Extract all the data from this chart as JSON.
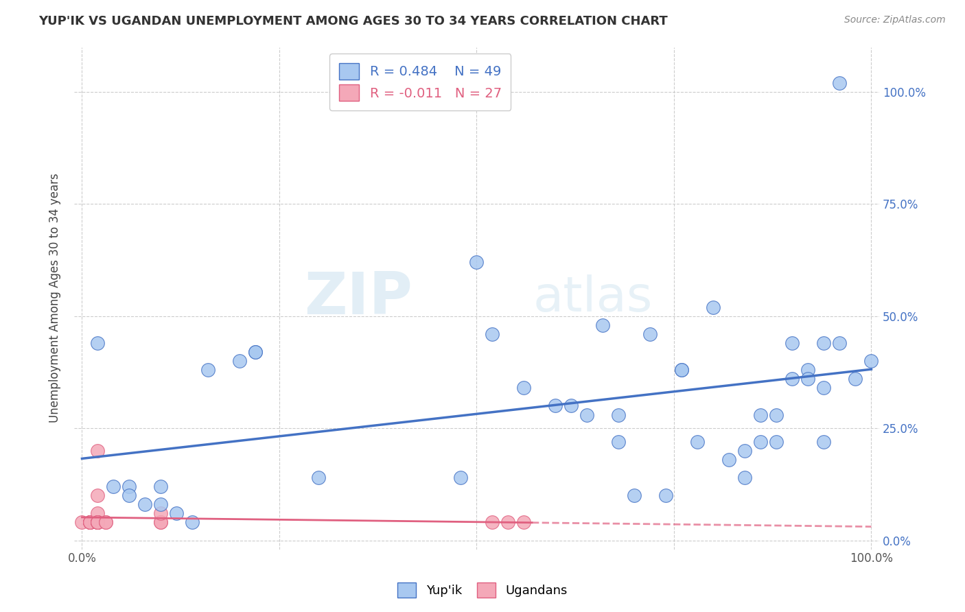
{
  "title": "YUP'IK VS UGANDAN UNEMPLOYMENT AMONG AGES 30 TO 34 YEARS CORRELATION CHART",
  "source": "Source: ZipAtlas.com",
  "ylabel": "Unemployment Among Ages 30 to 34 years",
  "legend_bottom": [
    "Yup'ik",
    "Ugandans"
  ],
  "yupik_R": 0.484,
  "yupik_N": 49,
  "ugandan_R": -0.011,
  "ugandan_N": 27,
  "yupik_color": "#a8c8f0",
  "yupik_line_color": "#4472c4",
  "ugandan_color": "#f4a8b8",
  "ugandan_line_color": "#e06080",
  "background_color": "#ffffff",
  "grid_color": "#cccccc",
  "watermark_zip": "ZIP",
  "watermark_atlas": "atlas",
  "yupik_x": [
    0.02,
    0.04,
    0.06,
    0.06,
    0.08,
    0.1,
    0.1,
    0.12,
    0.14,
    0.16,
    0.2,
    0.22,
    0.22,
    0.3,
    0.48,
    0.5,
    0.52,
    0.56,
    0.6,
    0.62,
    0.64,
    0.66,
    0.68,
    0.68,
    0.7,
    0.72,
    0.74,
    0.76,
    0.76,
    0.78,
    0.8,
    0.82,
    0.84,
    0.84,
    0.86,
    0.86,
    0.88,
    0.88,
    0.9,
    0.9,
    0.92,
    0.92,
    0.94,
    0.94,
    0.94,
    0.96,
    0.96,
    0.98,
    1.0
  ],
  "yupik_y": [
    0.44,
    0.12,
    0.12,
    0.1,
    0.08,
    0.12,
    0.08,
    0.06,
    0.04,
    0.38,
    0.4,
    0.42,
    0.42,
    0.14,
    0.14,
    0.62,
    0.46,
    0.34,
    0.3,
    0.3,
    0.28,
    0.48,
    0.28,
    0.22,
    0.1,
    0.46,
    0.1,
    0.38,
    0.38,
    0.22,
    0.52,
    0.18,
    0.2,
    0.14,
    0.28,
    0.22,
    0.28,
    0.22,
    0.44,
    0.36,
    0.38,
    0.36,
    0.44,
    0.34,
    0.22,
    1.02,
    0.44,
    0.36,
    0.4
  ],
  "ugandan_x": [
    0.0,
    0.01,
    0.01,
    0.01,
    0.01,
    0.01,
    0.01,
    0.01,
    0.02,
    0.02,
    0.02,
    0.02,
    0.02,
    0.02,
    0.02,
    0.02,
    0.02,
    0.02,
    0.02,
    0.03,
    0.03,
    0.1,
    0.1,
    0.1,
    0.52,
    0.54,
    0.56
  ],
  "ugandan_y": [
    0.04,
    0.04,
    0.04,
    0.04,
    0.04,
    0.04,
    0.04,
    0.04,
    0.04,
    0.04,
    0.04,
    0.04,
    0.04,
    0.2,
    0.1,
    0.06,
    0.04,
    0.04,
    0.04,
    0.04,
    0.04,
    0.04,
    0.04,
    0.06,
    0.04,
    0.04,
    0.04
  ],
  "xlim": [
    -0.01,
    1.01
  ],
  "ylim": [
    -0.02,
    1.1
  ],
  "xticks": [
    0.0,
    0.25,
    0.5,
    0.75,
    1.0
  ],
  "xticklabels_show": [
    "0.0%",
    "",
    "",
    "",
    "100.0%"
  ],
  "yticks": [
    0.0,
    0.25,
    0.5,
    0.75,
    1.0
  ],
  "right_ytick_labels": [
    "0.0%",
    "25.0%",
    "50.0%",
    "75.0%",
    "100.0%"
  ],
  "right_yticks": [
    0.0,
    0.25,
    0.5,
    0.75,
    1.0
  ]
}
